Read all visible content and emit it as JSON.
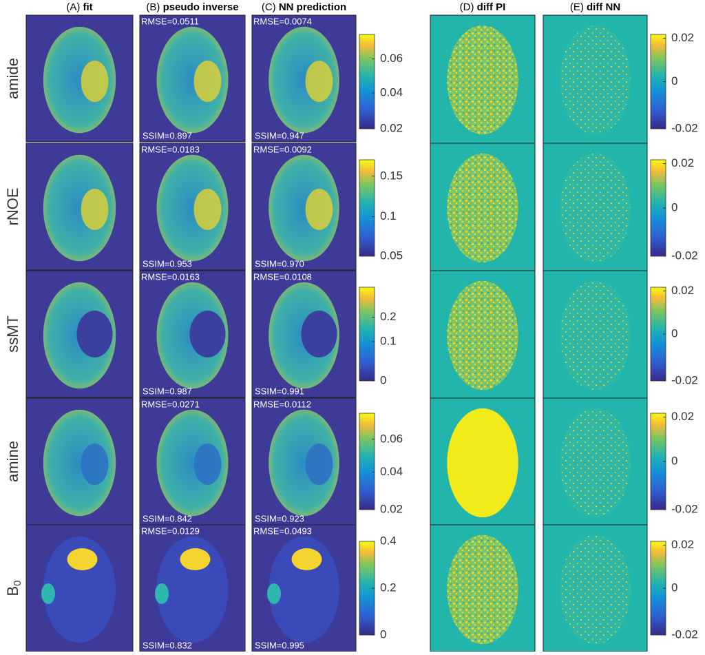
{
  "columns": [
    {
      "letter": "(A)",
      "title": "fit"
    },
    {
      "letter": "(B)",
      "title": "pseudo inverse"
    },
    {
      "letter": "(C)",
      "title": "NN prediction"
    },
    {
      "letter": "(D)",
      "title": "diff PI"
    },
    {
      "letter": "(E)",
      "title": "diff NN"
    }
  ],
  "rows": [
    {
      "label": "amide",
      "pi_rmse": "RMSE=0.0511",
      "pi_ssim": "SSIM=0.897",
      "nn_rmse": "RMSE=0.0074",
      "nn_ssim": "SSIM=0.947",
      "colorbar_ticks": [
        "0.06",
        "0.04",
        "0.02"
      ],
      "diff_colorbar_ticks": [
        "0.02",
        "0",
        "-0.02"
      ]
    },
    {
      "label": "rNOE",
      "pi_rmse": "RMSE=0.0183",
      "pi_ssim": "SSIM=0.953",
      "nn_rmse": "RMSE=0.0092",
      "nn_ssim": "SSIM=0.970",
      "colorbar_ticks": [
        "0.15",
        "0.1",
        "0.05"
      ],
      "diff_colorbar_ticks": [
        "0.02",
        "0",
        "-0.02"
      ]
    },
    {
      "label": "ssMT",
      "pi_rmse": "RMSE=0.0163",
      "pi_ssim": "SSIM=0.987",
      "nn_rmse": "RMSE=0.0108",
      "nn_ssim": "SSIM=0.991",
      "colorbar_ticks": [
        "0.2",
        "0.1",
        "0"
      ],
      "diff_colorbar_ticks": [
        "0.02",
        "0",
        "-0.02"
      ]
    },
    {
      "label": "amine",
      "pi_rmse": "RMSE=0.0271",
      "pi_ssim": "SSIM=0.842",
      "nn_rmse": "RMSE=0.0112",
      "nn_ssim": "SSIM=0.923",
      "colorbar_ticks": [
        "0.06",
        "0.04",
        "0.02"
      ],
      "diff_colorbar_ticks": [
        "0.02",
        "0",
        "-0.02"
      ]
    },
    {
      "label": "B",
      "label_subscript": "0",
      "pi_rmse": "RMSE=0.0129",
      "pi_ssim": "SSIM=0.832",
      "nn_rmse": "RMSE=0.0493",
      "nn_ssim": "SSIM=0.995",
      "colorbar_ticks": [
        "0.4",
        "0.2",
        "0"
      ],
      "diff_colorbar_ticks": [
        "0.02",
        "0",
        "-0.02"
      ]
    }
  ]
}
